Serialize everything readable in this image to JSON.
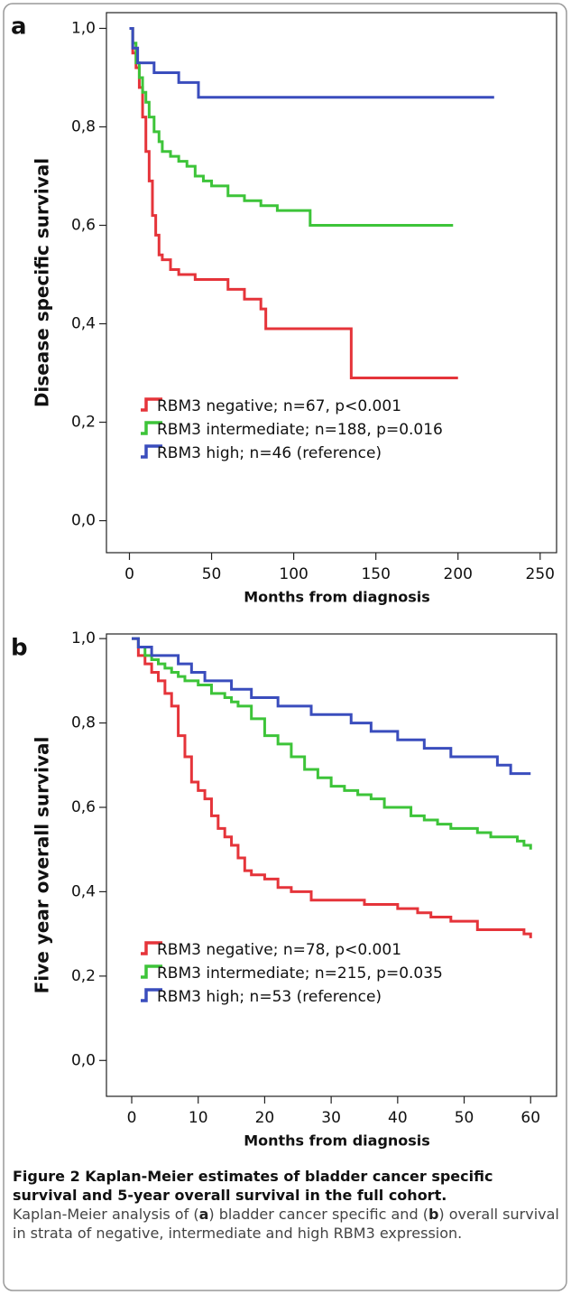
{
  "chart_data": [
    {
      "type": "line",
      "drawstyle": "steps-post",
      "label": "a",
      "ylabel": "Disease specific survival",
      "xlabel": "Months from diagnosis",
      "xlim": [
        -14,
        260
      ],
      "ylim": [
        -0.065,
        1.032
      ],
      "xticks": [
        0,
        50,
        100,
        150,
        200,
        250
      ],
      "yticks": [
        {
          "value": 0,
          "label": "0,0"
        },
        {
          "value": 0.2,
          "label": "0,2"
        },
        {
          "value": 0.4,
          "label": "0,4"
        },
        {
          "value": 0.6,
          "label": "0,6"
        },
        {
          "value": 0.8,
          "label": "0,8"
        },
        {
          "value": 1,
          "label": "1,0"
        }
      ],
      "legend": "lower left",
      "series": [
        {
          "name": "RBM3 negative; n=67, p<0.001",
          "color": "#e5343a",
          "x": [
            0,
            2,
            4,
            6,
            8,
            10,
            12,
            14,
            16,
            18,
            20,
            25,
            30,
            40,
            50,
            60,
            70,
            80,
            83,
            100,
            120,
            135,
            140,
            200
          ],
          "values": [
            1.0,
            0.95,
            0.92,
            0.88,
            0.82,
            0.75,
            0.69,
            0.62,
            0.58,
            0.54,
            0.53,
            0.51,
            0.5,
            0.49,
            0.49,
            0.47,
            0.45,
            0.43,
            0.39,
            0.39,
            0.39,
            0.29,
            0.29,
            0.29
          ]
        },
        {
          "name": "RBM3 intermediate; n=188, p=0.016",
          "color": "#3dc439",
          "x": [
            0,
            2,
            4,
            6,
            8,
            10,
            12,
            15,
            18,
            20,
            25,
            30,
            35,
            40,
            45,
            50,
            60,
            70,
            80,
            90,
            110,
            150,
            197
          ],
          "values": [
            1.0,
            0.97,
            0.93,
            0.9,
            0.87,
            0.85,
            0.82,
            0.79,
            0.77,
            0.75,
            0.74,
            0.73,
            0.72,
            0.7,
            0.69,
            0.68,
            0.66,
            0.65,
            0.64,
            0.63,
            0.6,
            0.6,
            0.6
          ]
        },
        {
          "name": "RBM3 high; n=46 (reference)",
          "color": "#3a4dbd",
          "x": [
            0,
            2,
            5,
            15,
            30,
            42,
            100,
            222
          ],
          "values": [
            1.0,
            0.96,
            0.93,
            0.91,
            0.89,
            0.86,
            0.86,
            0.86
          ]
        }
      ]
    },
    {
      "type": "line",
      "drawstyle": "steps-post",
      "label": "b",
      "ylabel": "Five year overall survival",
      "xlabel": "Months from diagnosis",
      "xlim": [
        -3.8,
        63.9
      ],
      "ylim": [
        -0.085,
        1.011
      ],
      "xticks": [
        0,
        10,
        20,
        30,
        40,
        50,
        60
      ],
      "yticks": [
        {
          "value": 0,
          "label": "0,0"
        },
        {
          "value": 0.2,
          "label": "0,2"
        },
        {
          "value": 0.4,
          "label": "0,4"
        },
        {
          "value": 0.6,
          "label": "0,6"
        },
        {
          "value": 0.8,
          "label": "0,8"
        },
        {
          "value": 1,
          "label": "1,0"
        }
      ],
      "legend": "lower left",
      "series": [
        {
          "name": "RBM3 negative; n=78, p<0.001",
          "color": "#e5343a",
          "x": [
            0,
            1,
            2,
            3,
            4,
            5,
            6,
            7,
            8,
            9,
            10,
            11,
            12,
            13,
            14,
            15,
            16,
            17,
            18,
            20,
            22,
            24,
            27,
            30,
            35,
            40,
            43,
            45,
            48,
            50,
            52,
            55,
            59,
            60
          ],
          "values": [
            1.0,
            0.96,
            0.94,
            0.92,
            0.9,
            0.87,
            0.84,
            0.77,
            0.72,
            0.66,
            0.64,
            0.62,
            0.58,
            0.55,
            0.53,
            0.51,
            0.48,
            0.45,
            0.44,
            0.43,
            0.41,
            0.4,
            0.38,
            0.38,
            0.37,
            0.36,
            0.35,
            0.34,
            0.33,
            0.33,
            0.31,
            0.31,
            0.3,
            0.29
          ]
        },
        {
          "name": "RBM3 intermediate; n=215, p=0.035",
          "color": "#3dc439",
          "x": [
            0,
            1,
            2,
            3,
            4,
            5,
            6,
            7,
            8,
            10,
            12,
            14,
            15,
            16,
            18,
            20,
            22,
            24,
            26,
            28,
            30,
            32,
            34,
            36,
            38,
            40,
            42,
            44,
            46,
            48,
            50,
            52,
            54,
            56,
            58,
            59,
            60
          ],
          "values": [
            1.0,
            0.98,
            0.96,
            0.95,
            0.94,
            0.93,
            0.92,
            0.91,
            0.9,
            0.89,
            0.87,
            0.86,
            0.85,
            0.84,
            0.81,
            0.77,
            0.75,
            0.72,
            0.69,
            0.67,
            0.65,
            0.64,
            0.63,
            0.62,
            0.6,
            0.6,
            0.58,
            0.57,
            0.56,
            0.55,
            0.55,
            0.54,
            0.53,
            0.53,
            0.52,
            0.51,
            0.5
          ]
        },
        {
          "name": "RBM3 high; n=53 (reference)",
          "color": "#3a4dbd",
          "x": [
            0,
            1,
            3,
            7,
            9,
            11,
            15,
            18,
            22,
            27,
            33,
            36,
            40,
            44,
            48,
            52,
            55,
            57,
            59,
            60
          ],
          "values": [
            1.0,
            0.98,
            0.96,
            0.94,
            0.92,
            0.9,
            0.88,
            0.86,
            0.84,
            0.82,
            0.8,
            0.78,
            0.76,
            0.74,
            0.72,
            0.72,
            0.7,
            0.68,
            0.68,
            0.68
          ]
        }
      ]
    }
  ],
  "caption": {
    "title": "Figure 2 Kaplan-Meier estimates of bladder cancer specific survival and 5-year overall survival in the full cohort.",
    "body": [
      "Kaplan-Meier analysis of (",
      "a",
      ") bladder cancer specific and (",
      "b",
      ") overall survival in strata of negative, intermediate and high RBM3 expression."
    ]
  }
}
